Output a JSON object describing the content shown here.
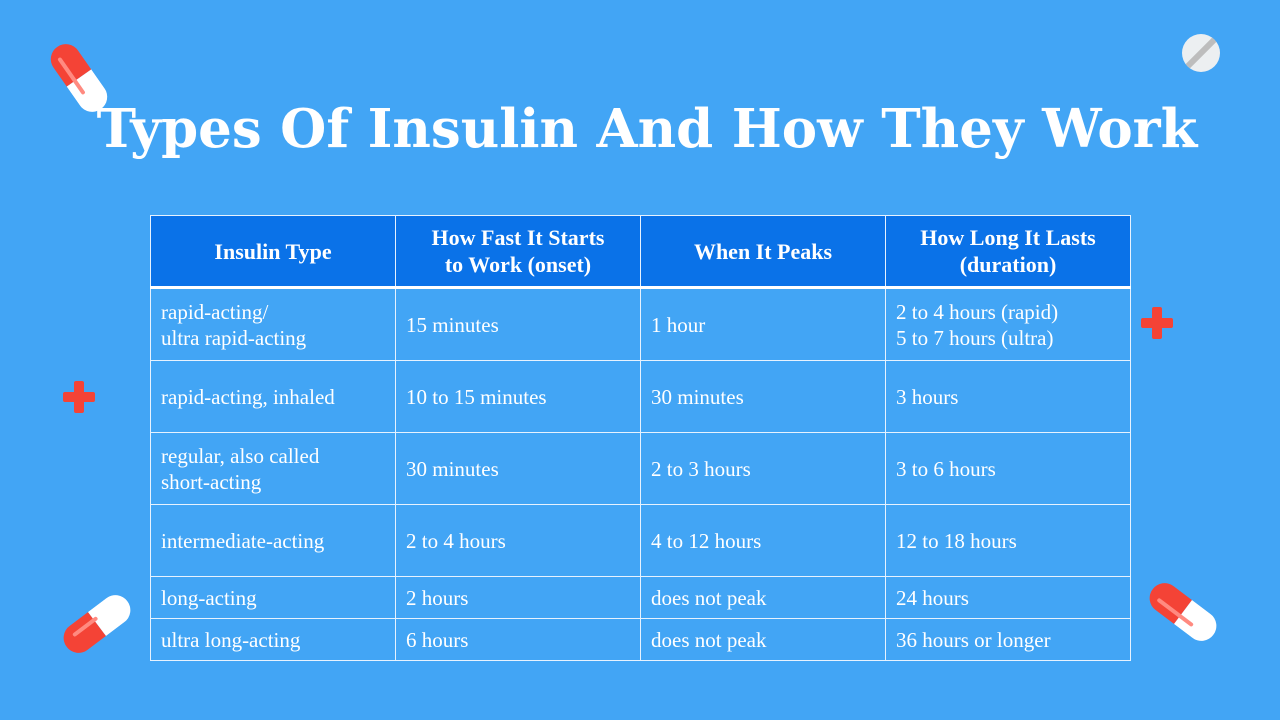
{
  "title": "Types Of Insulin And How They Work",
  "table": {
    "headers": [
      [
        "Insulin Type"
      ],
      [
        "How Fast It Starts",
        "to Work (onset)"
      ],
      [
        "When It Peaks"
      ],
      [
        "How Long It Lasts",
        "(duration)"
      ]
    ],
    "rows": [
      [
        [
          "rapid-acting/",
          "ultra rapid-acting"
        ],
        [
          "15 minutes"
        ],
        [
          "1 hour"
        ],
        [
          "2 to 4 hours (rapid)",
          "5 to 7 hours (ultra)"
        ]
      ],
      [
        [
          "rapid-acting, inhaled"
        ],
        [
          "10 to 15 minutes"
        ],
        [
          "30 minutes"
        ],
        [
          "3 hours"
        ]
      ],
      [
        [
          "regular, also called",
          "short-acting"
        ],
        [
          "30 minutes"
        ],
        [
          "2 to 3 hours"
        ],
        [
          "3 to 6 hours"
        ]
      ],
      [
        [
          "intermediate-acting"
        ],
        [
          "2 to 4 hours"
        ],
        [
          "4 to 12 hours"
        ],
        [
          "12 to 18 hours"
        ]
      ],
      [
        [
          "long-acting"
        ],
        [
          "2 hours"
        ],
        [
          "does not peak"
        ],
        [
          "24 hours"
        ]
      ],
      [
        [
          "ultra long-acting"
        ],
        [
          "6 hours"
        ],
        [
          "does not peak"
        ],
        [
          "36 hours or longer"
        ]
      ]
    ]
  },
  "decorations": {
    "pill_icon": "capsule-icon",
    "tablet_icon": "tablet-icon",
    "cross_icon": "medical-cross-icon",
    "colors": {
      "background": "#42a5f5",
      "header": "#0a72e8",
      "accent": "#f44336"
    }
  }
}
